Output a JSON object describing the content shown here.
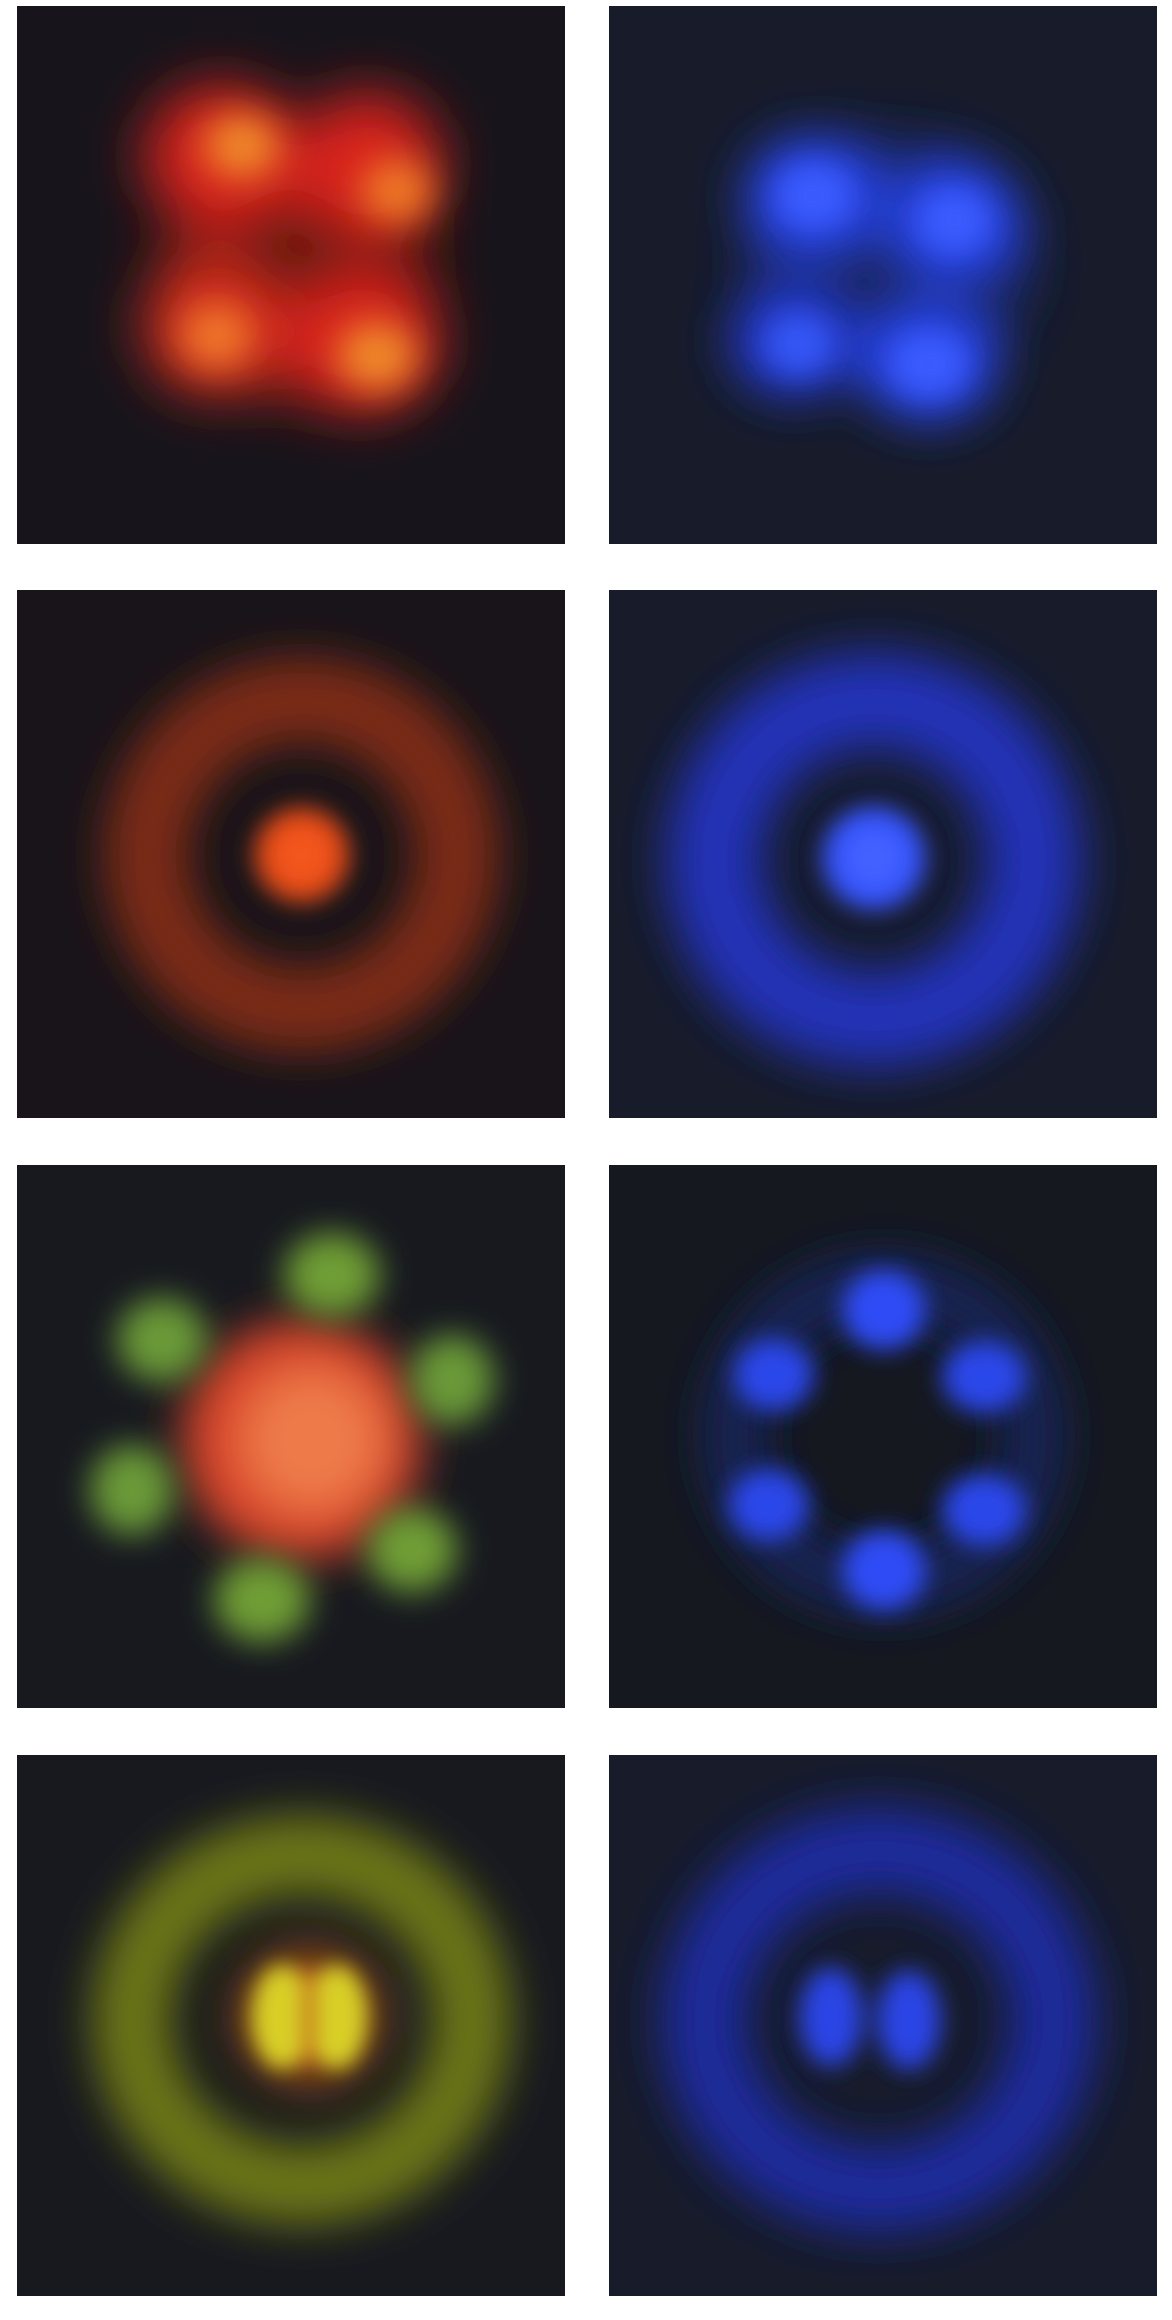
{
  "figure": {
    "layout": {
      "rows": 4,
      "columns": 2
    },
    "background_color": "#ffffff",
    "tiles": [
      {
        "id": "r1-left",
        "mode": "four-lobe",
        "palette": "red-orange",
        "background": "#17141b"
      },
      {
        "id": "r1-right",
        "mode": "four-lobe",
        "palette": "blue",
        "background": "#171b2a"
      },
      {
        "id": "r2-left",
        "mode": "center-spot-ring",
        "palette": "red-orange",
        "background": "#18141a"
      },
      {
        "id": "r2-right",
        "mode": "center-spot-ring",
        "palette": "blue",
        "background": "#171b2a"
      },
      {
        "id": "r3-left",
        "mode": "six-lobe-ring",
        "palette": "green-orange",
        "background": "#17191f"
      },
      {
        "id": "r3-right",
        "mode": "six-lobe-ring",
        "palette": "blue",
        "background": "#15181f"
      },
      {
        "id": "r4-left",
        "mode": "two-lobe-ring",
        "palette": "yellow-red",
        "background": "#17191f"
      },
      {
        "id": "r4-right",
        "mode": "two-lobe-ring",
        "palette": "blue",
        "background": "#171b2a"
      }
    ],
    "colors": {
      "red": "#e0261e",
      "orange": "#f0782a",
      "green": "#74a63a",
      "yellow": "#e0d52a",
      "blue": "#2f4dff",
      "blue_dim": "#2234c8"
    }
  }
}
